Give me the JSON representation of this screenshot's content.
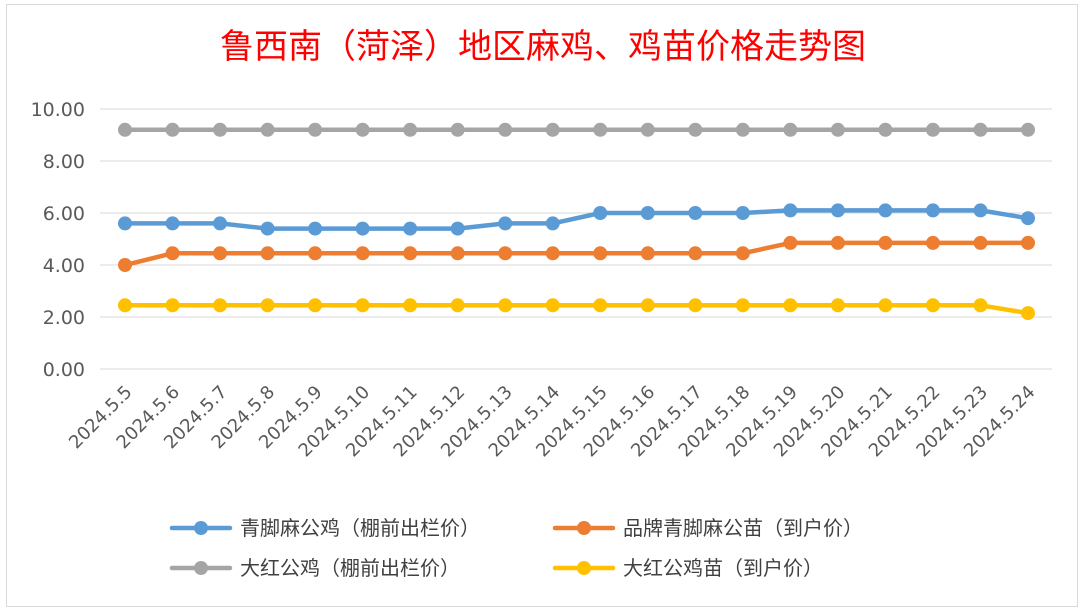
{
  "chart_data": {
    "type": "line",
    "title": "鲁西南（菏泽）地区麻鸡、鸡苗价格走势图",
    "xlabel": "",
    "ylabel": "",
    "ylim": [
      0,
      10
    ],
    "y_ticks": [
      "0.00",
      "2.00",
      "4.00",
      "6.00",
      "8.00",
      "10.00"
    ],
    "grid": true,
    "legend_position": "bottom",
    "x": [
      "2024.5.5",
      "2024.5.6",
      "2024.5.7",
      "2024.5.8",
      "2024.5.9",
      "2024.5.10",
      "2024.5.11",
      "2024.5.12",
      "2024.5.13",
      "2024.5.14",
      "2024.5.15",
      "2024.5.16",
      "2024.5.17",
      "2024.5.18",
      "2024.5.19",
      "2024.5.20",
      "2024.5.21",
      "2024.5.22",
      "2024.5.23",
      "2024.5.24"
    ],
    "series": [
      {
        "name": "青脚麻公鸡（棚前出栏价）",
        "color": "#5b9bd5",
        "values": [
          5.6,
          5.6,
          5.6,
          5.4,
          5.4,
          5.4,
          5.4,
          5.4,
          5.6,
          5.6,
          6.0,
          6.0,
          6.0,
          6.0,
          6.1,
          6.1,
          6.1,
          6.1,
          6.1,
          5.8
        ]
      },
      {
        "name": "品牌青脚麻公苗（到户价）",
        "color": "#ed7d31",
        "values": [
          4.0,
          4.45,
          4.45,
          4.45,
          4.45,
          4.45,
          4.45,
          4.45,
          4.45,
          4.45,
          4.45,
          4.45,
          4.45,
          4.45,
          4.85,
          4.85,
          4.85,
          4.85,
          4.85,
          4.85
        ]
      },
      {
        "name": "大红公鸡（棚前出栏价）",
        "color": "#a5a5a5",
        "values": [
          9.2,
          9.2,
          9.2,
          9.2,
          9.2,
          9.2,
          9.2,
          9.2,
          9.2,
          9.2,
          9.2,
          9.2,
          9.2,
          9.2,
          9.2,
          9.2,
          9.2,
          9.2,
          9.2,
          9.2
        ]
      },
      {
        "name": "大红公鸡苗（到户价）",
        "color": "#ffc000",
        "values": [
          2.45,
          2.45,
          2.45,
          2.45,
          2.45,
          2.45,
          2.45,
          2.45,
          2.45,
          2.45,
          2.45,
          2.45,
          2.45,
          2.45,
          2.45,
          2.45,
          2.45,
          2.45,
          2.45,
          2.15
        ]
      }
    ]
  }
}
